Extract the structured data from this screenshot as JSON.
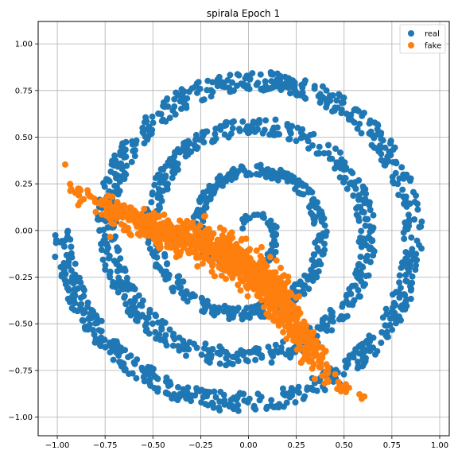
{
  "chart_data": {
    "type": "scatter",
    "title": "spirala Epoch 1",
    "xlabel": "",
    "ylabel": "",
    "xlim": [
      -1.1,
      1.05
    ],
    "ylim": [
      -1.1,
      1.12
    ],
    "xticks": [
      -1.0,
      -0.75,
      -0.5,
      -0.25,
      0.0,
      0.25,
      0.5,
      0.75,
      1.0
    ],
    "xtick_labels": [
      "−1.00",
      "−0.75",
      "−0.50",
      "−0.25",
      "0.00",
      "0.25",
      "0.50",
      "0.75",
      "1.00"
    ],
    "yticks": [
      -1.0,
      -0.75,
      -0.5,
      -0.25,
      0.0,
      0.25,
      0.5,
      0.75,
      1.0
    ],
    "ytick_labels": [
      "−1.00",
      "−0.75",
      "−0.50",
      "−0.25",
      "0.00",
      "0.25",
      "0.50",
      "0.75",
      "1.00"
    ],
    "grid": true,
    "legend_position": "top-right",
    "series": [
      {
        "name": "real",
        "color": "#1f77b4",
        "shape": "spiral",
        "center": [
          0.0,
          0.0
        ],
        "r_start": 0.02,
        "r_end": 0.98,
        "turns": 4.0,
        "band_width": 0.05,
        "n_points": 1800
      },
      {
        "name": "fake",
        "color": "#ff7f0e",
        "shape": "diagonal-band",
        "path": [
          [
            -1.0,
            0.44
          ],
          [
            -0.9,
            0.2
          ],
          [
            -0.6,
            0.05
          ],
          [
            -0.3,
            -0.05
          ],
          [
            -0.05,
            -0.15
          ],
          [
            0.15,
            -0.35
          ],
          [
            0.3,
            -0.6
          ],
          [
            0.45,
            -0.82
          ],
          [
            0.7,
            -0.95
          ]
        ],
        "band_width": 0.06,
        "n_points": 1100
      }
    ]
  }
}
